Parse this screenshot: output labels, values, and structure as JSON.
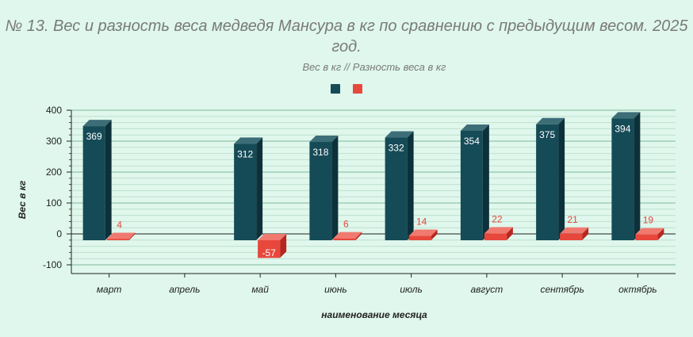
{
  "chart_data": {
    "type": "bar",
    "title": "№ 13.  Вес и разность веса медведя Мансура в кг по сравнению с предыдущим  весом. 2025 год.",
    "subtitle": "Вес в кг  //  Разность веса в кг",
    "xlabel": "наименование месяца",
    "ylabel": "Вес в кг",
    "ylim": [
      -100,
      400
    ],
    "yticks": [
      -100,
      0,
      100,
      200,
      300,
      400
    ],
    "categories": [
      "март",
      "апрель",
      "май",
      "июнь",
      "июль",
      "август",
      "сентябрь",
      "октябрь"
    ],
    "series": [
      {
        "values": [
          369,
          null,
          312,
          318,
          332,
          354,
          375,
          394
        ],
        "color": "#154b57",
        "side_color": "#0c313a",
        "top_color": "#3d6e78"
      },
      {
        "values": [
          4,
          null,
          -57,
          6,
          14,
          22,
          21,
          19
        ],
        "color": "#e8473c",
        "side_color": "#b8271f",
        "top_color": "#f07a70"
      }
    ],
    "grid": true,
    "legend": "top-center"
  }
}
